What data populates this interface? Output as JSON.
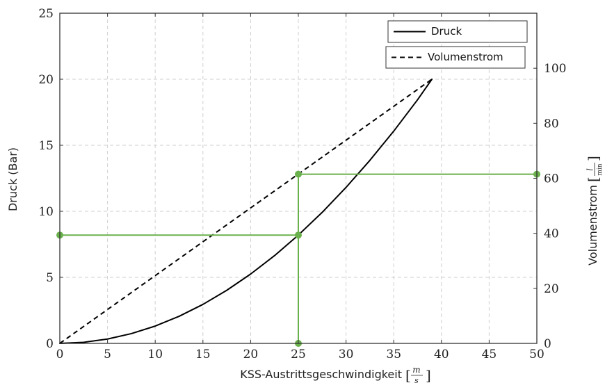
{
  "chart_data": {
    "type": "line",
    "xlabel": "KSS-Austrittsgeschwindigkeit",
    "xlabel_unit_num": "m",
    "xlabel_unit_den": "s",
    "ylabel_left": "Druck (Bar)",
    "ylabel_right": "Volumenstrom",
    "ylabel_right_unit_num": "l",
    "ylabel_right_unit_den": "min",
    "xlim": [
      0,
      50
    ],
    "ylim_left": [
      0,
      25
    ],
    "ylim_right": [
      0,
      120
    ],
    "xticks": [
      "0",
      "5",
      "10",
      "15",
      "20",
      "25",
      "30",
      "35",
      "40",
      "45",
      "50"
    ],
    "yticks_left": [
      "0",
      "5",
      "10",
      "15",
      "20",
      "25"
    ],
    "yticks_right": [
      "0",
      "20",
      "40",
      "60",
      "80",
      "100"
    ],
    "grid": true,
    "legend_position": "top-right",
    "series": [
      {
        "name": "Druck",
        "axis": "left",
        "style": "solid",
        "color": "#000000",
        "x": [
          0,
          2.5,
          5,
          7.5,
          10,
          12.5,
          15,
          17.5,
          20,
          22.5,
          25,
          27.5,
          30,
          32.5,
          35,
          37.5,
          39
        ],
        "y": [
          0,
          0.08,
          0.33,
          0.74,
          1.31,
          2.05,
          2.95,
          4.02,
          5.25,
          6.64,
          8.2,
          9.92,
          11.81,
          13.86,
          16.07,
          18.45,
          20.0
        ]
      },
      {
        "name": "Volumenstrom",
        "axis": "right",
        "style": "dashed",
        "color": "#000000",
        "x": [
          0,
          39
        ],
        "y": [
          0,
          96
        ]
      }
    ],
    "annotations": {
      "color": "#6ab04c",
      "vertical_line_x": 25,
      "pressure_at_25": 8.2,
      "flow_at_25": 61.5,
      "points": [
        {
          "x": 0,
          "y": 8.2,
          "axis": "left"
        },
        {
          "x": 25,
          "y": 8.2,
          "axis": "left"
        },
        {
          "x": 25,
          "y": 0,
          "axis": "left"
        },
        {
          "x": 25,
          "y": 61.5,
          "axis": "right"
        },
        {
          "x": 50,
          "y": 61.5,
          "axis": "right"
        }
      ]
    }
  }
}
